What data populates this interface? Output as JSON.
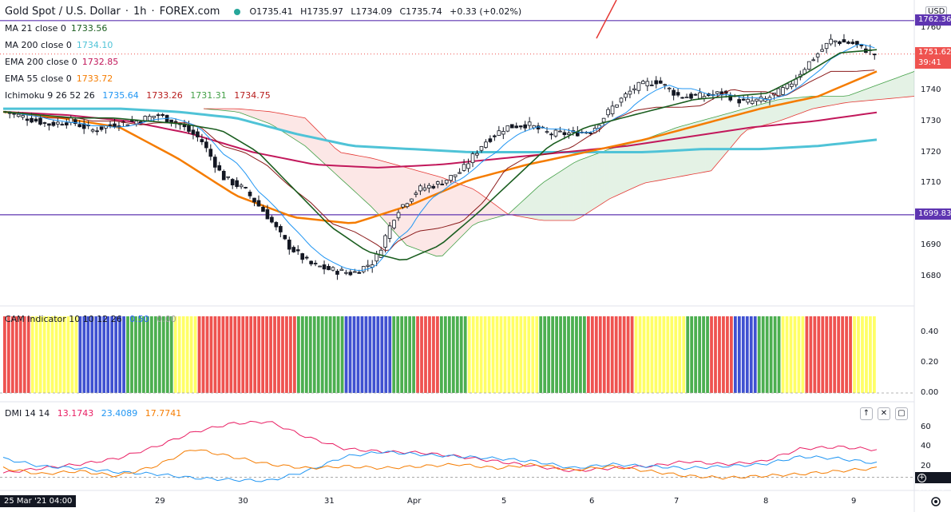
{
  "header": {
    "symbol": "Gold Spot / U.S. Dollar",
    "interval": "1h",
    "source": "FOREX.com",
    "ohlc_open": "O1735.41",
    "ohlc_high": "H1735.97",
    "ohlc_low": "L1734.09",
    "ohlc_close": "C1735.74",
    "change": "+0.33 (+0.02%)"
  },
  "indicators": [
    {
      "label": "MA 21 close 0",
      "value": "1733.56",
      "color": "#1b5e20"
    },
    {
      "label": "MA 200 close 0",
      "value": "1734.10",
      "color": "#4fc3d7"
    },
    {
      "label": "EMA 200 close 0",
      "value": "1732.85",
      "color": "#c2185b"
    },
    {
      "label": "EMA 55 close 0",
      "value": "1733.72",
      "color": "#f57c00"
    }
  ],
  "ichimoku": {
    "label": "Ichimoku 9 26 52 26",
    "values": [
      "1735.64",
      "1733.26",
      "1731.31",
      "1734.75"
    ],
    "colors": [
      "#2196f3",
      "#b71c1c",
      "#43a047",
      "#b71c1c"
    ]
  },
  "cam": {
    "label": "CAM Indicator 10 10 12 26",
    "values": [
      "0.50",
      "0.00"
    ],
    "ticks": [
      "0.40",
      "0.20",
      "0.00"
    ]
  },
  "dmi": {
    "label": "DMI 14 14",
    "values": [
      "13.1743",
      "23.4089",
      "17.7741"
    ],
    "colors": [
      "#e91e63",
      "#2196f3",
      "#f57c00"
    ],
    "ticks": [
      "60",
      "40",
      "20"
    ],
    "current": "8.6040"
  },
  "price_axis": {
    "currency": "USD",
    "ticks": [
      "1760",
      "1750",
      "1740",
      "1730",
      "1720",
      "1710",
      "1700",
      "1690",
      "1680"
    ],
    "tag_upper": "1762.36",
    "tag_current": "1751.62",
    "tag_countdown": "39:41",
    "tag_lower": "1699.83"
  },
  "time_axis": {
    "current": "25 Mar '21  04:00",
    "labels": [
      "29",
      "30",
      "31",
      "Apr",
      "5",
      "6",
      "7",
      "8",
      "9"
    ]
  },
  "colors": {
    "up": "#ffffff",
    "down": "#131722",
    "ma21": "#1b5e20",
    "ma200": "#4fc3d7",
    "ema200": "#c2185b",
    "ema55": "#f57c00",
    "tenkan": "#2196f3",
    "kijun": "#8b1a1a",
    "span_a": "#43a047",
    "span_b": "#e53935",
    "hline": "#5e35b1",
    "cam_red": "#ef5350",
    "cam_yellow": "#ffff66",
    "cam_green": "#4caf50",
    "cam_blue": "#3f51d1"
  },
  "chart_data": {
    "type": "candlestick",
    "title": "Gold Spot / U.S. Dollar",
    "interval": "1h",
    "ylim": [
      1670,
      1765
    ],
    "hlines": [
      1762.36,
      1699.83
    ],
    "x_labels": [
      "29",
      "30",
      "31",
      "Apr",
      "5",
      "6",
      "7",
      "8",
      "9"
    ],
    "close_path": [
      1733,
      1731,
      1729,
      1730,
      1727,
      1729,
      1730,
      1732,
      1729,
      1724,
      1712,
      1708,
      1700,
      1690,
      1684,
      1682,
      1681,
      1685,
      1701,
      1708,
      1710,
      1714,
      1723,
      1728,
      1729,
      1726,
      1726,
      1727,
      1735,
      1741,
      1743,
      1738,
      1738,
      1739,
      1736,
      1737,
      1741,
      1749,
      1756,
      1755,
      1751.6
    ],
    "ma21_path": [
      1733,
      1732,
      1731,
      1731,
      1730,
      1729,
      1727,
      1720,
      1708,
      1696,
      1688,
      1685,
      1690,
      1700,
      1711,
      1722,
      1728,
      1731,
      1734,
      1737,
      1738,
      1739,
      1745,
      1752,
      1753
    ],
    "ma200_path": [
      1734,
      1734,
      1734,
      1733,
      1731,
      1726,
      1722,
      1721,
      1720,
      1720,
      1720,
      1720,
      1721,
      1721,
      1722,
      1724
    ],
    "ema200_path": [
      1733,
      1732,
      1730,
      1726,
      1720,
      1716,
      1715,
      1716,
      1718,
      1720,
      1722,
      1725,
      1728,
      1730,
      1732.8
    ],
    "ema55_path": [
      1733,
      1731,
      1728,
      1718,
      1706,
      1699,
      1697,
      1703,
      1711,
      1716,
      1720,
      1724,
      1729,
      1734,
      1738,
      1746
    ],
    "cam_colors": [
      "red",
      "yellow",
      "yellow",
      "blue",
      "blue",
      "green",
      "green",
      "yellow",
      "red",
      "red",
      "red",
      "red",
      "green",
      "green",
      "blue",
      "blue",
      "green",
      "red",
      "green",
      "yellow",
      "yellow",
      "yellow",
      "green",
      "green",
      "red",
      "red",
      "yellow",
      "yellow",
      "green",
      "red",
      "blue",
      "green",
      "yellow",
      "red",
      "red",
      "yellow"
    ],
    "dmi_series": [
      {
        "name": "DI+",
        "values": [
          13,
          18,
          22,
          28,
          40,
          55,
          64,
          66,
          50,
          38,
          35,
          34,
          30,
          25,
          20,
          15,
          18,
          20,
          25,
          22,
          25,
          38,
          40,
          37
        ]
      },
      {
        "name": "DI-",
        "values": [
          28,
          20,
          18,
          14,
          12,
          8,
          6,
          5,
          15,
          30,
          35,
          32,
          30,
          28,
          25,
          18,
          22,
          20,
          18,
          20,
          22,
          30,
          28,
          23
        ]
      },
      {
        "name": "ADX",
        "values": [
          18,
          12,
          15,
          10,
          20,
          38,
          30,
          22,
          18,
          20,
          18,
          20,
          22,
          18,
          22,
          16,
          20,
          15,
          10,
          8,
          10,
          12,
          15,
          18
        ]
      }
    ]
  }
}
